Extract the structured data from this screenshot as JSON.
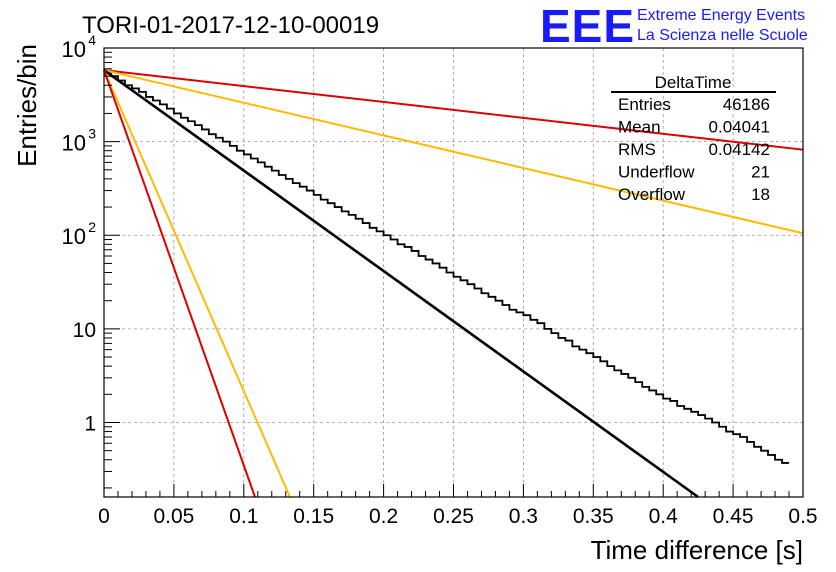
{
  "header": {
    "run_title": "TORI-01-2017-12-10-00019",
    "logo_text": "EEE",
    "logo_line1": "Extreme Energy Events",
    "logo_line2": "La Scienza nelle Scuole"
  },
  "stats": {
    "title": "DeltaTime",
    "rows": [
      {
        "label": "Entries",
        "value": "46186"
      },
      {
        "label": "Mean",
        "value": "0.04041"
      },
      {
        "label": "RMS",
        "value": "0.04142"
      },
      {
        "label": "Underflow",
        "value": "21"
      },
      {
        "label": "Overflow",
        "value": "18"
      }
    ]
  },
  "colors": {
    "histogram": "#000000",
    "fit": "#000000",
    "red_lines": "#dd0000",
    "orange_lines": "#ffbb00",
    "logo": "#1a1aff",
    "grid": "#999999"
  },
  "chart_data": {
    "type": "histogram",
    "title": "",
    "xlabel": "Time difference [s]",
    "ylabel": "Entries/bin",
    "xlim": [
      0,
      0.5
    ],
    "ylim": [
      0.16,
      10000
    ],
    "log_y": true,
    "grid": true,
    "x_ticks": [
      "0",
      "0.05",
      "0.1",
      "0.15",
      "0.2",
      "0.25",
      "0.3",
      "0.35",
      "0.4",
      "0.45",
      "0.5"
    ],
    "x_tick_values": [
      0,
      0.05,
      0.1,
      0.15,
      0.2,
      0.25,
      0.3,
      0.35,
      0.4,
      0.45,
      0.5
    ],
    "y_ticks": [
      {
        "value": 1,
        "base": "1",
        "exp": ""
      },
      {
        "value": 10,
        "base": "10",
        "exp": ""
      },
      {
        "value": 100,
        "base": "10",
        "exp": "2"
      },
      {
        "value": 1000,
        "base": "10",
        "exp": "3"
      },
      {
        "value": 10000,
        "base": "10",
        "exp": "4"
      }
    ],
    "bin_width": 0.005,
    "bins": [
      5500,
      5000,
      4500,
      4000,
      3700,
      3400,
      3000,
      2750,
      2500,
      2250,
      2000,
      1800,
      1650,
      1500,
      1350,
      1200,
      1100,
      1000,
      900,
      800,
      730,
      660,
      600,
      540,
      490,
      440,
      400,
      360,
      330,
      300,
      270,
      240,
      220,
      200,
      180,
      165,
      150,
      135,
      120,
      110,
      100,
      90,
      80,
      75,
      68,
      60,
      55,
      50,
      45,
      40,
      36,
      33,
      30,
      27,
      24,
      22,
      20,
      18,
      16,
      15,
      14,
      12.5,
      11.5,
      10,
      9,
      8,
      7.5,
      6.5,
      6,
      5.5,
      5,
      4.5,
      4,
      3.6,
      3.3,
      3,
      2.7,
      2.4,
      2.2,
      2,
      1.8,
      1.7,
      1.5,
      1.4,
      1.3,
      1.2,
      1.1,
      1,
      0.9,
      0.8,
      0.75,
      0.7,
      0.62,
      0.55,
      0.5,
      0.45,
      0.4,
      0.37
    ],
    "series": [
      {
        "x": [
          0,
          0.5
        ],
        "y": [
          5800,
          820
        ],
        "color": "red_lines"
      },
      {
        "x": [
          0,
          0.5
        ],
        "y": [
          5800,
          105
        ],
        "color": "orange_lines"
      },
      {
        "x": [
          0,
          0.425
        ],
        "y": [
          5800,
          0.16
        ],
        "color": "fit"
      },
      {
        "x": [
          0,
          0.133
        ],
        "y": [
          5800,
          0.16
        ],
        "color": "orange_lines"
      },
      {
        "x": [
          0,
          0.108
        ],
        "y": [
          5800,
          0.16
        ],
        "color": "red_lines"
      }
    ]
  }
}
